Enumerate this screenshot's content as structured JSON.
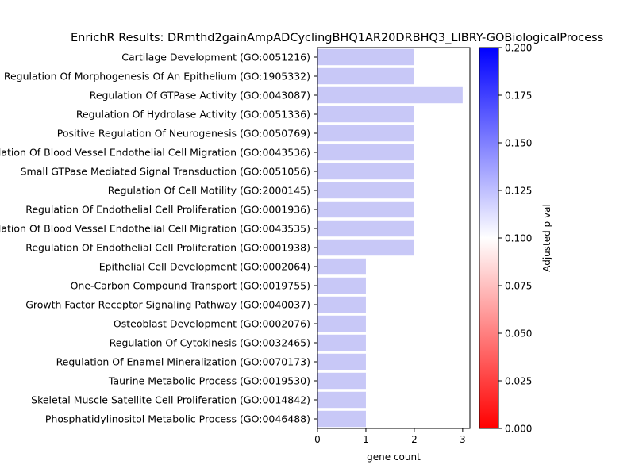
{
  "chart_data": {
    "type": "bar",
    "orientation": "horizontal",
    "title": "EnrichR Results: DRmthd2gainAmpADCyclingBHQ1AR20DRBHQ3_LIBRY-GOBiologicalProcess",
    "xlabel": "gene count",
    "ylabel": "",
    "xlim": [
      0,
      3.15
    ],
    "xticks": [
      0,
      1,
      2,
      3
    ],
    "bar_color": "#c8c8f7",
    "categories": [
      "Cartilage Development (GO:0051216)",
      "Regulation Of Morphogenesis Of An Epithelium (GO:1905332)",
      "Regulation Of GTPase Activity (GO:0043087)",
      "Regulation Of Hydrolase Activity (GO:0051336)",
      "Positive Regulation Of Neurogenesis (GO:0050769)",
      "Regulation Of Blood Vessel Endothelial Cell Migration (GO:0043536)",
      "Small GTPase Mediated Signal Transduction (GO:0051056)",
      "Regulation Of Cell Motility (GO:2000145)",
      "Regulation Of Endothelial Cell Proliferation (GO:0001936)",
      "Regulation Of Blood Vessel Endothelial Cell Migration (GO:0043535)",
      "Regulation Of Endothelial Cell Proliferation (GO:0001938)",
      "Epithelial Cell Development (GO:0002064)",
      "One-Carbon Compound Transport (GO:0019755)",
      "Growth Factor Receptor Signaling Pathway (GO:0040037)",
      "Osteoblast Development (GO:0002076)",
      "Regulation Of Cytokinesis (GO:0032465)",
      "Regulation Of Enamel Mineralization (GO:0070173)",
      "Taurine Metabolic Process (GO:0019530)",
      "Skeletal Muscle Satellite Cell Proliferation (GO:0014842)",
      "Phosphatidylinositol Metabolic Process (GO:0046488)"
    ],
    "values": [
      2,
      2,
      3,
      2,
      2,
      2,
      2,
      2,
      2,
      2,
      2,
      1,
      1,
      1,
      1,
      1,
      1,
      1,
      1,
      1
    ],
    "colorbar": {
      "label": "Adjusted p val",
      "range": [
        0,
        0.2
      ],
      "ticks": [
        "0.000",
        "0.025",
        "0.050",
        "0.075",
        "0.100",
        "0.125",
        "0.150",
        "0.175",
        "0.200"
      ],
      "colors": [
        "#ff0000",
        "#ffffff",
        "#0000ff"
      ]
    }
  }
}
